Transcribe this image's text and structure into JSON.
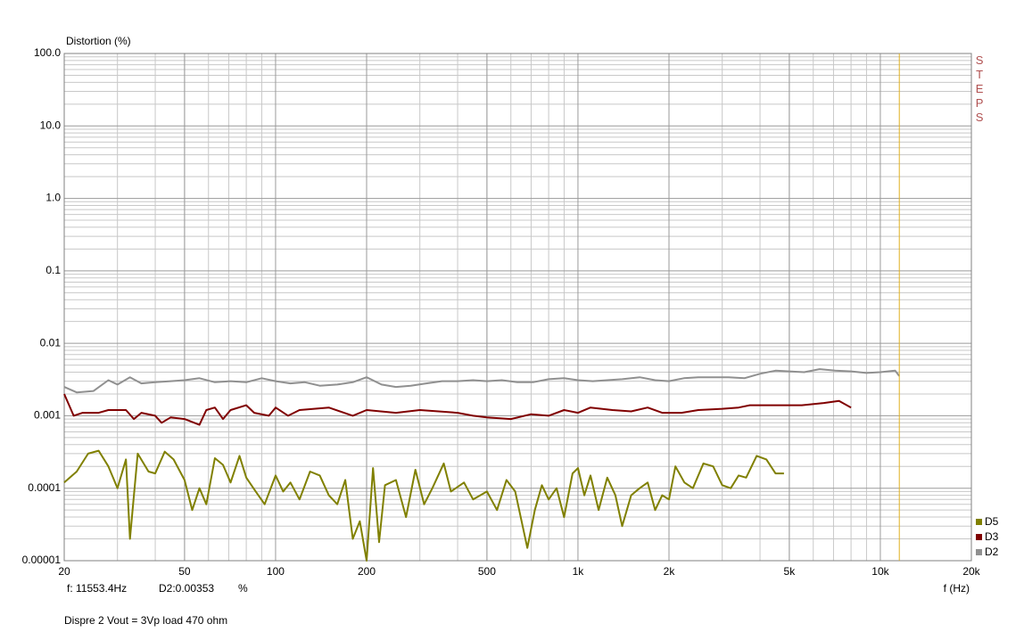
{
  "chart_data": {
    "type": "line",
    "y_label": "Distortion (%)",
    "x_label": "f (Hz)",
    "side_label": "STEPS",
    "log_x": true,
    "log_y": true,
    "grid": true,
    "legend": "lower right",
    "xlim": [
      20,
      20000
    ],
    "ylim": [
      1e-05,
      100
    ],
    "xticks": [
      20,
      50,
      100,
      200,
      500,
      {
        "value": 1000,
        "label": "1k"
      },
      {
        "value": 2000,
        "label": "2k"
      },
      {
        "value": 5000,
        "label": "5k"
      },
      {
        "value": 10000,
        "label": "10k"
      },
      {
        "value": 20000,
        "label": "20k"
      }
    ],
    "yticks": [
      {
        "value": 100,
        "label": "100.0"
      },
      {
        "value": 10,
        "label": "10.0"
      },
      {
        "value": 1,
        "label": "1.0"
      },
      0.1,
      0.01,
      0.001,
      0.0001,
      1e-05
    ],
    "cursor": {
      "value": 11553.4,
      "label": "f: 11553.4Hz",
      "color": "#e0b020"
    },
    "readout": "D2:0.00353",
    "unit": "%",
    "footer": "Dispre 2 Vout = 3Vp load 470 ohm",
    "series": [
      {
        "name": "D5",
        "color": "#808000",
        "x": [
          20,
          22,
          24,
          26,
          28,
          30,
          32,
          33,
          35,
          38,
          40,
          43,
          46,
          50,
          53,
          56,
          59,
          63,
          67,
          71,
          76,
          80,
          86,
          92,
          100,
          106,
          112,
          120,
          130,
          140,
          150,
          160,
          170,
          180,
          190,
          200,
          210,
          220,
          230,
          250,
          270,
          290,
          310,
          330,
          360,
          380,
          420,
          450,
          500,
          540,
          580,
          620,
          680,
          720,
          760,
          800,
          850,
          900,
          960,
          1000,
          1050,
          1100,
          1170,
          1250,
          1330,
          1400,
          1500,
          1600,
          1700,
          1800,
          1900,
          2000,
          2100,
          2250,
          2400,
          2600,
          2800,
          3000,
          3200,
          3400,
          3600,
          3900,
          4200,
          4500,
          4800
        ],
        "values": [
          0.00012,
          0.00017,
          0.0003,
          0.00033,
          0.0002,
          0.0001,
          0.00025,
          2e-05,
          0.0003,
          0.00017,
          0.00016,
          0.00032,
          0.00025,
          0.00013,
          5e-05,
          0.0001,
          6e-05,
          0.00026,
          0.00021,
          0.00012,
          0.00028,
          0.00014,
          9e-05,
          6e-05,
          0.00015,
          9e-05,
          0.00012,
          7e-05,
          0.00017,
          0.00015,
          8e-05,
          6e-05,
          0.00013,
          2e-05,
          3.5e-05,
          1e-05,
          0.00019,
          1.8e-05,
          0.00011,
          0.00013,
          4e-05,
          0.00018,
          6e-05,
          0.0001,
          0.00022,
          9e-05,
          0.00012,
          7e-05,
          9e-05,
          5e-05,
          0.00013,
          9e-05,
          1.5e-05,
          5e-05,
          0.00011,
          7e-05,
          0.0001,
          4e-05,
          0.00016,
          0.00019,
          8e-05,
          0.00015,
          5e-05,
          0.00014,
          8e-05,
          3e-05,
          8e-05,
          0.0001,
          0.00012,
          5e-05,
          8e-05,
          7e-05,
          0.0002,
          0.00012,
          0.0001,
          0.00022,
          0.0002,
          0.00011,
          0.0001,
          0.00015,
          0.00014,
          0.00028,
          0.00025,
          0.00016,
          0.00016
        ]
      },
      {
        "name": "D3",
        "color": "#800000",
        "x": [
          20,
          21.5,
          23,
          26,
          28,
          32,
          34,
          36,
          40,
          42,
          45,
          50,
          56,
          59,
          63,
          67,
          71,
          80,
          85,
          95,
          100,
          110,
          120,
          150,
          180,
          200,
          250,
          300,
          400,
          450,
          500,
          600,
          700,
          800,
          900,
          1000,
          1100,
          1300,
          1500,
          1700,
          1900,
          2200,
          2500,
          3000,
          3400,
          3700,
          4500,
          5500,
          6500,
          7300,
          8000
        ],
        "values": [
          0.002,
          0.001,
          0.0011,
          0.0011,
          0.0012,
          0.0012,
          0.0009,
          0.0011,
          0.001,
          0.0008,
          0.00095,
          0.0009,
          0.00075,
          0.0012,
          0.0013,
          0.0009,
          0.0012,
          0.0014,
          0.0011,
          0.001,
          0.0013,
          0.001,
          0.0012,
          0.0013,
          0.001,
          0.0012,
          0.0011,
          0.0012,
          0.0011,
          0.001,
          0.00095,
          0.0009,
          0.00105,
          0.001,
          0.0012,
          0.0011,
          0.0013,
          0.0012,
          0.00115,
          0.0013,
          0.0011,
          0.0011,
          0.0012,
          0.00125,
          0.0013,
          0.0014,
          0.0014,
          0.0014,
          0.0015,
          0.0016,
          0.0013
        ]
      },
      {
        "name": "D2",
        "color": "#909090",
        "x": [
          20,
          22,
          25,
          28,
          30,
          33,
          36,
          40,
          45,
          50,
          56,
          63,
          71,
          80,
          90,
          100,
          112,
          125,
          140,
          160,
          180,
          200,
          224,
          250,
          280,
          315,
          355,
          400,
          450,
          500,
          560,
          630,
          710,
          800,
          900,
          1000,
          1120,
          1250,
          1400,
          1600,
          1800,
          2000,
          2240,
          2500,
          2800,
          3150,
          3550,
          4000,
          4500,
          5000,
          5600,
          6300,
          7100,
          8000,
          9000,
          10000,
          11200,
          11553.4
        ],
        "values": [
          0.0025,
          0.0021,
          0.0022,
          0.0031,
          0.0027,
          0.0034,
          0.0028,
          0.0029,
          0.003,
          0.0031,
          0.0033,
          0.0029,
          0.003,
          0.0029,
          0.0033,
          0.003,
          0.0028,
          0.0029,
          0.0026,
          0.0027,
          0.0029,
          0.0034,
          0.0027,
          0.0025,
          0.0026,
          0.0028,
          0.003,
          0.003,
          0.0031,
          0.003,
          0.0031,
          0.0029,
          0.0029,
          0.0032,
          0.0033,
          0.0031,
          0.003,
          0.0031,
          0.0032,
          0.0034,
          0.0031,
          0.003,
          0.0033,
          0.0034,
          0.0034,
          0.0034,
          0.0033,
          0.0038,
          0.0042,
          0.0041,
          0.004,
          0.0044,
          0.0042,
          0.0041,
          0.0039,
          0.004,
          0.0042,
          0.00353
        ]
      }
    ]
  }
}
